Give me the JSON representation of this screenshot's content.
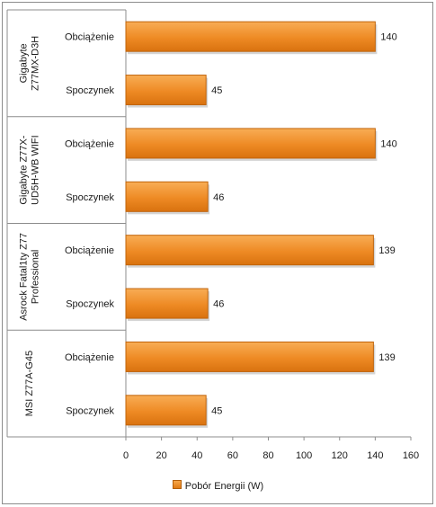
{
  "chart_data": {
    "type": "bar",
    "orientation": "horizontal",
    "series": [
      {
        "name": "Pobór Energii (W)",
        "color": "#ee8a24",
        "values": [
          140,
          45,
          140,
          46,
          139,
          46,
          139,
          45
        ]
      }
    ],
    "groups": [
      {
        "label": "Gigabyte Z77MX-D3H",
        "lines": [
          "Gigabyte",
          "Z77MX-D3H"
        ],
        "categories": [
          "Obciążenie",
          "Spoczynek"
        ]
      },
      {
        "label": "Gigabyte Z77X-UD5H-WB WIFI",
        "lines": [
          "Gigabyte Z77X-",
          "UD5H-WB WIFI"
        ],
        "categories": [
          "Obciążenie",
          "Spoczynek"
        ]
      },
      {
        "label": "Asrock Fatal1ty Z77 Professional",
        "lines": [
          "Asrock Fatal1ty Z77",
          "Professional"
        ],
        "categories": [
          "Obciążenie",
          "Spoczynek"
        ]
      },
      {
        "label": "MSI Z77A-G45",
        "lines": [
          "MSI Z77A-G45"
        ],
        "categories": [
          "Obciążenie",
          "Spoczynek"
        ]
      }
    ],
    "xlim": [
      0,
      160
    ],
    "xticks": [
      0,
      20,
      40,
      60,
      80,
      100,
      120,
      140,
      160
    ],
    "grid": false,
    "legend_position": "bottom"
  }
}
